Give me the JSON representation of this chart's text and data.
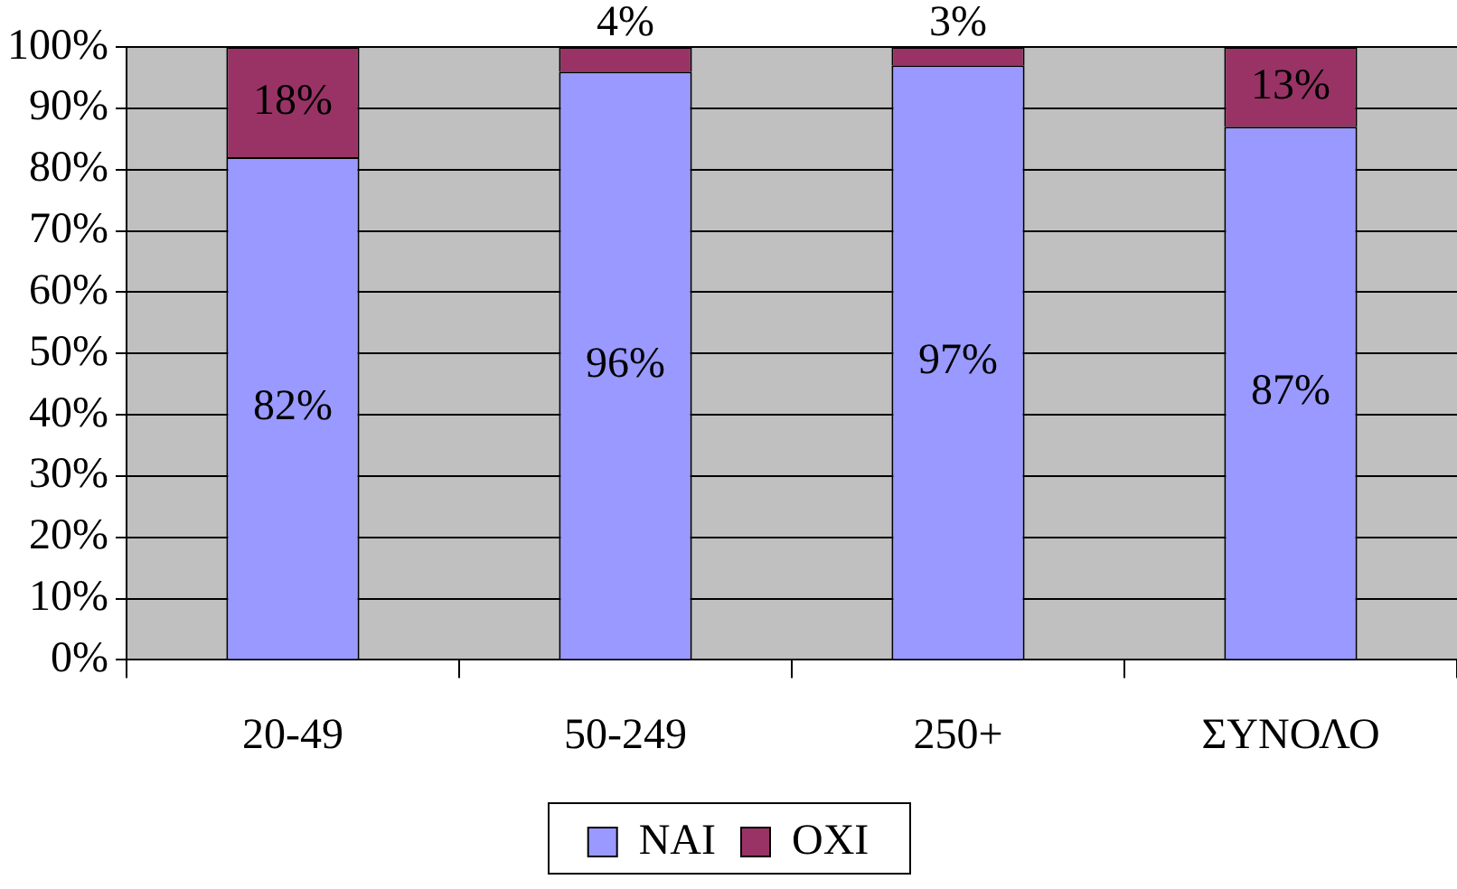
{
  "chart_data": {
    "type": "bar",
    "stacked": true,
    "categories": [
      "20-49",
      "50-249",
      "250+",
      "ΣΥΝΟΛΟ"
    ],
    "series": [
      {
        "name": "ΝΑΙ",
        "color": "#9999ff",
        "values": [
          82,
          96,
          97,
          87
        ],
        "value_labels": [
          "82%",
          "96%",
          "97%",
          "87%"
        ]
      },
      {
        "name": "ΟΧΙ",
        "color": "#993366",
        "values": [
          18,
          4,
          3,
          13
        ],
        "value_labels": [
          "18%",
          "4%",
          "3%",
          "13%"
        ]
      }
    ],
    "ylim": [
      0,
      100
    ],
    "yticks": [
      {
        "value": 0,
        "label": "0%"
      },
      {
        "value": 10,
        "label": "10%"
      },
      {
        "value": 20,
        "label": "20%"
      },
      {
        "value": 30,
        "label": "30%"
      },
      {
        "value": 40,
        "label": "40%"
      },
      {
        "value": 50,
        "label": "50%"
      },
      {
        "value": 60,
        "label": "60%"
      },
      {
        "value": 70,
        "label": "70%"
      },
      {
        "value": 80,
        "label": "80%"
      },
      {
        "value": 90,
        "label": "90%"
      },
      {
        "value": 100,
        "label": "100%"
      }
    ],
    "grid": "y",
    "legend": "bottom"
  }
}
